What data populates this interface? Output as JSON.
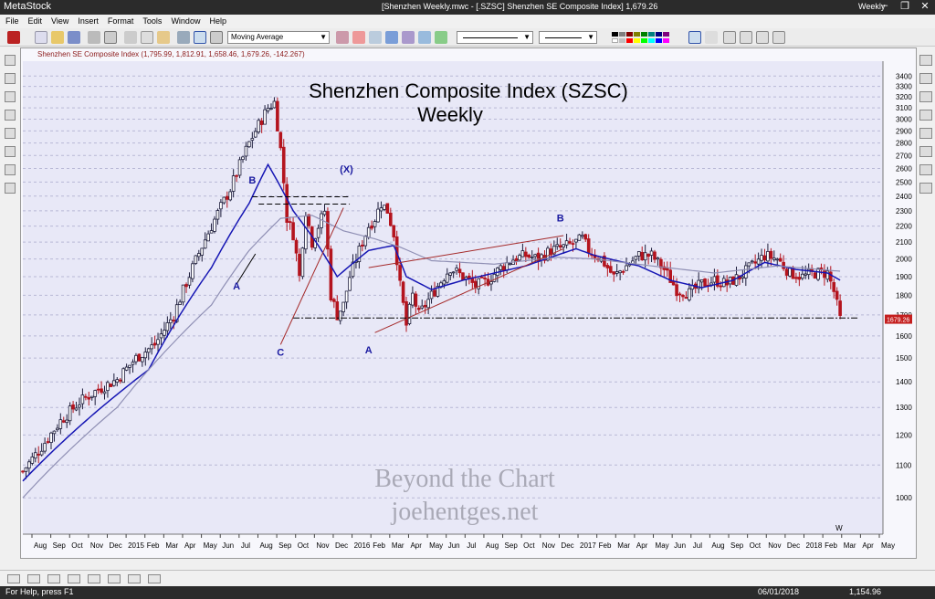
{
  "app": {
    "name": "MetaStock",
    "window_title": "[Shenzhen Weekly.mwc - [.SZSC] Shenzhen SE Composite Index]    1,679.26",
    "period": "Weekly",
    "window_buttons": [
      "–",
      "❐",
      "✕"
    ]
  },
  "menu": [
    "File",
    "Edit",
    "View",
    "Insert",
    "Format",
    "Tools",
    "Window",
    "Help"
  ],
  "toolbar": {
    "indicator_select": "Moving Average",
    "line_style_select": "",
    "line_width_select": ""
  },
  "colors": {
    "chart_bg": "#e8e8f7",
    "up_candle": "#1c1c3a",
    "down_candle": "#b4141e",
    "ma_fast": "#1616b4",
    "ma_slow": "#8f8fb4",
    "wave_label": "#1a1aa0",
    "trendline_red": "#a52a2a",
    "price_tag": "#c41e1e"
  },
  "chart": {
    "security_line": "Shenzhen SE Composite Index (1,795.99, 1,812.91, 1,658.46, 1,679.26, -142.267)",
    "title_line1": "Shenzhen Composite Index (SZSC)",
    "title_line2": "Weekly",
    "watermark_line1": "Beyond the Chart",
    "watermark_line2": "joehentges.net",
    "last_price_tag": "1679.26",
    "period_marker": "W"
  },
  "chart_data": {
    "type": "candlestick",
    "title": "Shenzhen Composite Index (SZSC)",
    "subtitle": "Weekly",
    "yscale": "log",
    "ylim": [
      900,
      3550
    ],
    "y_ticks": [
      1000,
      1100,
      1200,
      1300,
      1400,
      1500,
      1600,
      1700,
      1800,
      1900,
      2000,
      2100,
      2200,
      2300,
      2400,
      2500,
      2600,
      2700,
      2800,
      2900,
      3000,
      3100,
      3200,
      3300,
      3400
    ],
    "x_ticks": [
      "Aug",
      "Sep",
      "Oct",
      "Nov",
      "Dec",
      "2015",
      "Feb",
      "Mar",
      "Apr",
      "May",
      "Jun",
      "Jul",
      "Aug",
      "Sep",
      "Oct",
      "Nov",
      "Dec",
      "2016",
      "Feb",
      "Mar",
      "Apr",
      "May",
      "Jun",
      "Jul",
      "Aug",
      "Sep",
      "Oct",
      "Nov",
      "Dec",
      "2017",
      "Feb",
      "Mar",
      "Apr",
      "May",
      "Jun",
      "Jul",
      "Aug",
      "Sep",
      "Oct",
      "Nov",
      "Dec",
      "2018",
      "Feb",
      "Mar",
      "Apr",
      "May"
    ],
    "close_path": [
      [
        0,
        1080
      ],
      [
        6,
        1160
      ],
      [
        12,
        1250
      ],
      [
        18,
        1320
      ],
      [
        24,
        1370
      ],
      [
        30,
        1410
      ],
      [
        36,
        1500
      ],
      [
        42,
        1560
      ],
      [
        48,
        1700
      ],
      [
        54,
        1950
      ],
      [
        60,
        2200
      ],
      [
        66,
        2450
      ],
      [
        72,
        2800
      ],
      [
        78,
        3100
      ],
      [
        80,
        3150
      ],
      [
        82,
        2750
      ],
      [
        84,
        2250
      ],
      [
        86,
        2150
      ],
      [
        88,
        1900
      ],
      [
        90,
        2300
      ],
      [
        92,
        2100
      ],
      [
        94,
        2200
      ],
      [
        96,
        2300
      ],
      [
        98,
        1800
      ],
      [
        100,
        1700
      ],
      [
        102,
        1750
      ],
      [
        104,
        1900
      ],
      [
        106,
        2000
      ],
      [
        108,
        2100
      ],
      [
        110,
        2200
      ],
      [
        112,
        2250
      ],
      [
        114,
        2350
      ],
      [
        116,
        2300
      ],
      [
        118,
        2150
      ],
      [
        120,
        1850
      ],
      [
        122,
        1650
      ],
      [
        124,
        1800
      ],
      [
        126,
        1700
      ],
      [
        128,
        1750
      ],
      [
        132,
        1850
      ],
      [
        136,
        1950
      ],
      [
        140,
        1900
      ],
      [
        144,
        1850
      ],
      [
        148,
        1880
      ],
      [
        152,
        1950
      ],
      [
        156,
        2000
      ],
      [
        160,
        2020
      ],
      [
        164,
        2000
      ],
      [
        168,
        2050
      ],
      [
        172,
        2070
      ],
      [
        176,
        2100
      ],
      [
        178,
        2120
      ],
      [
        180,
        2050
      ],
      [
        184,
        2000
      ],
      [
        188,
        1900
      ],
      [
        192,
        1960
      ],
      [
        196,
        2020
      ],
      [
        200,
        2020
      ],
      [
        204,
        1940
      ],
      [
        208,
        1830
      ],
      [
        212,
        1810
      ],
      [
        216,
        1860
      ],
      [
        220,
        1880
      ],
      [
        224,
        1860
      ],
      [
        228,
        1900
      ],
      [
        232,
        1960
      ],
      [
        236,
        2020
      ],
      [
        240,
        2000
      ],
      [
        244,
        1920
      ],
      [
        248,
        1900
      ],
      [
        252,
        1920
      ],
      [
        256,
        1920
      ],
      [
        258,
        1820
      ],
      [
        260,
        1680
      ]
    ],
    "series": [
      {
        "name": "",
        "values_path": [
          [
            0,
            1050
          ],
          [
            20,
            1250
          ],
          [
            40,
            1450
          ],
          [
            60,
            1950
          ],
          [
            72,
            2350
          ],
          [
            78,
            2630
          ],
          [
            86,
            2300
          ],
          [
            94,
            2080
          ],
          [
            100,
            1900
          ],
          [
            110,
            2050
          ],
          [
            118,
            2080
          ],
          [
            122,
            1900
          ],
          [
            130,
            1830
          ],
          [
            140,
            1880
          ],
          [
            160,
            1960
          ],
          [
            176,
            2060
          ],
          [
            182,
            2020
          ],
          [
            196,
            1960
          ],
          [
            206,
            1880
          ],
          [
            216,
            1840
          ],
          [
            226,
            1880
          ],
          [
            236,
            1980
          ],
          [
            246,
            1940
          ],
          [
            256,
            1920
          ],
          [
            260,
            1880
          ]
        ]
      },
      {
        "name": "",
        "values_path": [
          [
            0,
            1000
          ],
          [
            30,
            1300
          ],
          [
            60,
            1750
          ],
          [
            72,
            2050
          ],
          [
            82,
            2250
          ],
          [
            92,
            2270
          ],
          [
            102,
            2170
          ],
          [
            112,
            2120
          ],
          [
            120,
            2070
          ],
          [
            130,
            1990
          ],
          [
            150,
            1970
          ],
          [
            170,
            2010
          ],
          [
            182,
            2000
          ],
          [
            200,
            1960
          ],
          [
            220,
            1920
          ],
          [
            240,
            1960
          ],
          [
            260,
            1930
          ]
        ]
      }
    ],
    "wave_labels": [
      {
        "text": "A",
        "x": 68,
        "y": 1830
      },
      {
        "text": "B",
        "x": 73,
        "y": 2490
      },
      {
        "text": "C",
        "x": 82,
        "y": 1510
      },
      {
        "text": "(X)",
        "x": 102,
        "y": 2570
      },
      {
        "text": "A",
        "x": 110,
        "y": 1520
      },
      {
        "text": "B",
        "x": 171,
        "y": 2230
      }
    ],
    "horizontal_level": 1685
  },
  "status": {
    "help": "For Help, press F1",
    "date": "06/01/2018",
    "value": "1,154.96"
  }
}
